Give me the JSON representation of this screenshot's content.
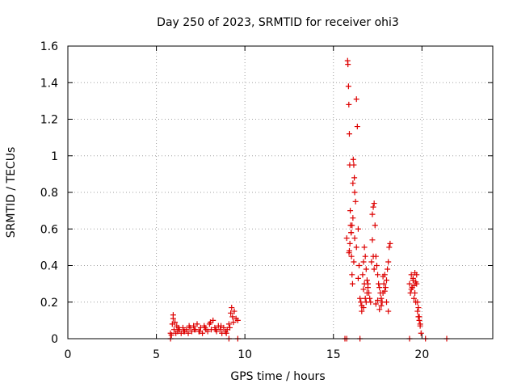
{
  "colors": {
    "series": "#dd0000",
    "grid": "#a0a0a0",
    "frame": "#000000"
  },
  "chart_data": {
    "type": "scatter",
    "title": "Day 250 of 2023, SRMTID for receiver ohi3",
    "xlabel": "GPS time / hours",
    "ylabel": "SRMTID / TECUs",
    "xlim": [
      0,
      24
    ],
    "ylim": [
      0,
      1.6
    ],
    "grid": true,
    "marker": "plus",
    "x_ticks": [
      0,
      5,
      10,
      15,
      20
    ],
    "x_tick_labels": [
      "0",
      "5",
      "10",
      "15",
      "20"
    ],
    "y_ticks": [
      0,
      0.2,
      0.4,
      0.6,
      0.8,
      1,
      1.2,
      1.4,
      1.6
    ],
    "y_tick_labels": [
      "0",
      "0.2",
      "0.4",
      "0.6",
      "0.8",
      "1",
      "1.2",
      "1.4",
      "1.6"
    ],
    "series": [
      {
        "name": "SRMTID",
        "x": [
          5.85,
          5.9,
          5.95,
          6.0,
          6.05,
          6.1,
          6.15,
          6.2,
          6.3,
          6.4,
          6.5,
          6.6,
          6.7,
          6.8,
          6.9,
          7.0,
          7.1,
          7.2,
          7.3,
          7.4,
          7.5,
          7.6,
          7.7,
          7.8,
          7.9,
          8.0,
          8.1,
          8.2,
          8.3,
          8.4,
          8.5,
          8.6,
          8.7,
          8.8,
          8.9,
          9.0,
          9.1,
          9.2,
          9.25,
          9.3,
          9.35,
          9.4,
          9.5,
          9.6,
          5.8,
          5.95,
          6.25,
          6.55,
          6.85,
          7.15,
          7.45,
          7.75,
          8.05,
          8.35,
          8.65,
          8.95,
          9.15,
          15.75,
          15.8,
          15.82,
          15.85,
          15.87,
          15.9,
          15.92,
          15.95,
          15.97,
          16.0,
          16.02,
          16.05,
          16.08,
          16.1,
          16.12,
          16.15,
          16.18,
          16.2,
          16.25,
          16.3,
          16.35,
          16.4,
          16.45,
          16.5,
          16.55,
          16.6,
          16.65,
          16.7,
          16.75,
          16.8,
          16.85,
          16.9,
          16.95,
          17.0,
          17.05,
          17.1,
          17.15,
          17.2,
          17.25,
          17.3,
          17.35,
          17.4,
          17.45,
          17.5,
          17.55,
          17.6,
          17.65,
          17.7,
          17.75,
          17.8,
          17.85,
          17.9,
          17.95,
          18.0,
          18.05,
          18.1,
          18.15,
          18.2,
          17.2,
          17.25,
          17.3,
          16.95,
          16.9,
          16.85,
          16.8,
          16.75,
          16.7,
          15.88,
          15.9,
          15.93,
          16.0,
          16.05,
          16.1,
          16.15,
          16.2,
          16.3,
          16.4,
          16.6,
          16.7,
          17.4,
          17.5,
          17.6,
          17.7,
          17.8,
          17.9,
          18.0,
          18.1,
          19.3,
          19.35,
          19.4,
          19.45,
          19.5,
          19.55,
          19.6,
          19.65,
          19.7,
          19.75,
          19.8,
          19.85,
          19.9,
          19.95,
          19.4,
          19.5,
          19.6,
          19.7,
          19.75,
          19.8,
          19.85,
          19.9,
          19.55,
          19.65,
          5.8,
          9.1,
          9.6,
          15.65,
          15.75,
          16.5,
          19.3,
          20.2,
          21.4
        ],
        "y": [
          0.02,
          0.08,
          0.13,
          0.05,
          0.09,
          0.03,
          0.07,
          0.04,
          0.05,
          0.03,
          0.06,
          0.04,
          0.05,
          0.03,
          0.06,
          0.04,
          0.07,
          0.05,
          0.08,
          0.04,
          0.06,
          0.03,
          0.07,
          0.05,
          0.04,
          0.08,
          0.05,
          0.1,
          0.06,
          0.04,
          0.07,
          0.05,
          0.03,
          0.06,
          0.04,
          0.05,
          0.08,
          0.14,
          0.17,
          0.12,
          0.09,
          0.15,
          0.11,
          0.1,
          0.03,
          0.11,
          0.06,
          0.04,
          0.07,
          0.05,
          0.04,
          0.06,
          0.09,
          0.05,
          0.07,
          0.03,
          0.06,
          0.55,
          1.52,
          1.5,
          1.38,
          1.28,
          1.12,
          0.95,
          0.7,
          0.62,
          0.58,
          0.45,
          0.35,
          0.3,
          0.85,
          0.98,
          0.95,
          0.88,
          0.8,
          0.75,
          1.31,
          1.16,
          0.6,
          0.4,
          0.22,
          0.2,
          0.18,
          0.35,
          0.42,
          0.5,
          0.45,
          0.38,
          0.32,
          0.28,
          0.25,
          0.22,
          0.2,
          0.42,
          0.68,
          0.72,
          0.74,
          0.62,
          0.45,
          0.4,
          0.35,
          0.3,
          0.28,
          0.25,
          0.22,
          0.2,
          0.25,
          0.3,
          0.35,
          0.28,
          0.32,
          0.38,
          0.42,
          0.5,
          0.52,
          0.54,
          0.45,
          0.38,
          0.3,
          0.25,
          0.2,
          0.22,
          0.3,
          0.27,
          0.47,
          0.48,
          0.52,
          0.58,
          0.62,
          0.66,
          0.42,
          0.55,
          0.5,
          0.33,
          0.15,
          0.17,
          0.19,
          0.21,
          0.16,
          0.18,
          0.34,
          0.26,
          0.2,
          0.15,
          0.3,
          0.25,
          0.35,
          0.28,
          0.32,
          0.22,
          0.36,
          0.2,
          0.3,
          0.15,
          0.12,
          0.1,
          0.07,
          0.03,
          0.27,
          0.33,
          0.25,
          0.35,
          0.2,
          0.17,
          0.12,
          0.08,
          0.29,
          0.31,
          0.0,
          0.0,
          0.0,
          0.0,
          0.0,
          0.0,
          0.0,
          0.0,
          0.0
        ]
      }
    ]
  }
}
